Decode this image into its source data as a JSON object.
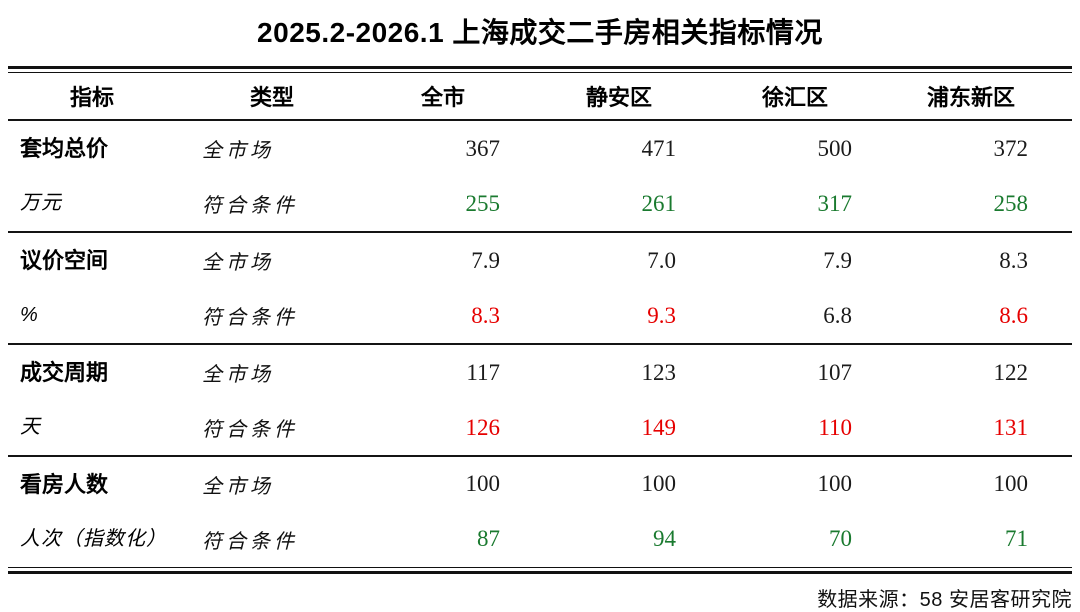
{
  "title": "2025.2-2026.1 上海成交二手房相关指标情况",
  "source": "数据来源：58 安居客研究院",
  "palette": {
    "green": "#1a7a2f",
    "red": "#e60000",
    "black": "#1b1b1b"
  },
  "table": {
    "headers": [
      "指标",
      "类型",
      "全市",
      "静安区",
      "徐汇区",
      "浦东新区"
    ],
    "sections": [
      {
        "indicator": "套均总价",
        "unit": "万元",
        "rows": [
          {
            "type": "全市场",
            "cells": [
              {
                "v": "367",
                "c": "black"
              },
              {
                "v": "471",
                "c": "black"
              },
              {
                "v": "500",
                "c": "black"
              },
              {
                "v": "372",
                "c": "black"
              }
            ]
          },
          {
            "type": "符合条件",
            "cells": [
              {
                "v": "255",
                "c": "green"
              },
              {
                "v": "261",
                "c": "green"
              },
              {
                "v": "317",
                "c": "green"
              },
              {
                "v": "258",
                "c": "green"
              }
            ]
          }
        ]
      },
      {
        "indicator": "议价空间",
        "unit": "%",
        "rows": [
          {
            "type": "全市场",
            "cells": [
              {
                "v": "7.9",
                "c": "black"
              },
              {
                "v": "7.0",
                "c": "black"
              },
              {
                "v": "7.9",
                "c": "black"
              },
              {
                "v": "8.3",
                "c": "black"
              }
            ]
          },
          {
            "type": "符合条件",
            "cells": [
              {
                "v": "8.3",
                "c": "red"
              },
              {
                "v": "9.3",
                "c": "red"
              },
              {
                "v": "6.8",
                "c": "black"
              },
              {
                "v": "8.6",
                "c": "red"
              }
            ]
          }
        ]
      },
      {
        "indicator": "成交周期",
        "unit": "天",
        "rows": [
          {
            "type": "全市场",
            "cells": [
              {
                "v": "117",
                "c": "black"
              },
              {
                "v": "123",
                "c": "black"
              },
              {
                "v": "107",
                "c": "black"
              },
              {
                "v": "122",
                "c": "black"
              }
            ]
          },
          {
            "type": "符合条件",
            "cells": [
              {
                "v": "126",
                "c": "red"
              },
              {
                "v": "149",
                "c": "red"
              },
              {
                "v": "110",
                "c": "red"
              },
              {
                "v": "131",
                "c": "red"
              }
            ]
          }
        ]
      },
      {
        "indicator": "看房人数",
        "unit": "人次（指数化）",
        "rows": [
          {
            "type": "全市场",
            "cells": [
              {
                "v": "100",
                "c": "black"
              },
              {
                "v": "100",
                "c": "black"
              },
              {
                "v": "100",
                "c": "black"
              },
              {
                "v": "100",
                "c": "black"
              }
            ]
          },
          {
            "type": "符合条件",
            "cells": [
              {
                "v": "87",
                "c": "green"
              },
              {
                "v": "94",
                "c": "green"
              },
              {
                "v": "70",
                "c": "green"
              },
              {
                "v": "71",
                "c": "green"
              }
            ]
          }
        ]
      }
    ]
  },
  "chart_data": {
    "type": "table",
    "title": "2025.2-2026.1 上海成交二手房相关指标情况",
    "columns": [
      "指标",
      "类型",
      "全市",
      "静安区",
      "徐汇区",
      "浦东新区"
    ],
    "rows": [
      [
        "套均总价 万元",
        "全市场",
        367,
        471,
        500,
        372
      ],
      [
        "套均总价 万元",
        "符合条件",
        255,
        261,
        317,
        258
      ],
      [
        "议价空间 %",
        "全市场",
        7.9,
        7.0,
        7.9,
        8.3
      ],
      [
        "议价空间 %",
        "符合条件",
        8.3,
        9.3,
        6.8,
        8.6
      ],
      [
        "成交周期 天",
        "全市场",
        117,
        123,
        107,
        122
      ],
      [
        "成交周期 天",
        "符合条件",
        126,
        149,
        110,
        131
      ],
      [
        "看房人数 人次（指数化）",
        "全市场",
        100,
        100,
        100,
        100
      ],
      [
        "看房人数 人次（指数化）",
        "符合条件",
        87,
        94,
        70,
        71
      ]
    ],
    "highlight_colors": {
      "green_cells": "better-than-market values",
      "red_cells": "worse-than-market values"
    },
    "source": "数据来源：58 安居客研究院"
  }
}
